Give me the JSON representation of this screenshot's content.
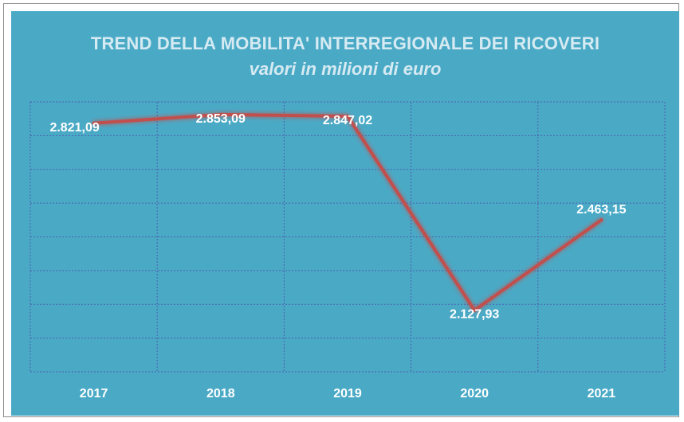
{
  "chart_data": {
    "type": "line",
    "title": "TREND DELLA MOBILITA' INTERREGIONALE DEI RICOVERI",
    "subtitle": "valori in milioni di euro",
    "categories": [
      "2017",
      "2018",
      "2019",
      "2020",
      "2021"
    ],
    "values": [
      2821.09,
      2853.09,
      2847.02,
      2127.93,
      2463.15
    ],
    "data_labels": [
      "2.821,09",
      "2.853,09",
      "2.847,02",
      "2.127,93",
      "2.463,15"
    ],
    "xlabel": "",
    "ylabel": "",
    "ylim": [
      1900,
      2900
    ],
    "grid": true,
    "legend": "none",
    "colors": {
      "background": "#4aaac6",
      "line": "#c0504d",
      "grid": "#4a5fb0",
      "label": "#ffffff",
      "title": "#d6eaf2"
    }
  }
}
